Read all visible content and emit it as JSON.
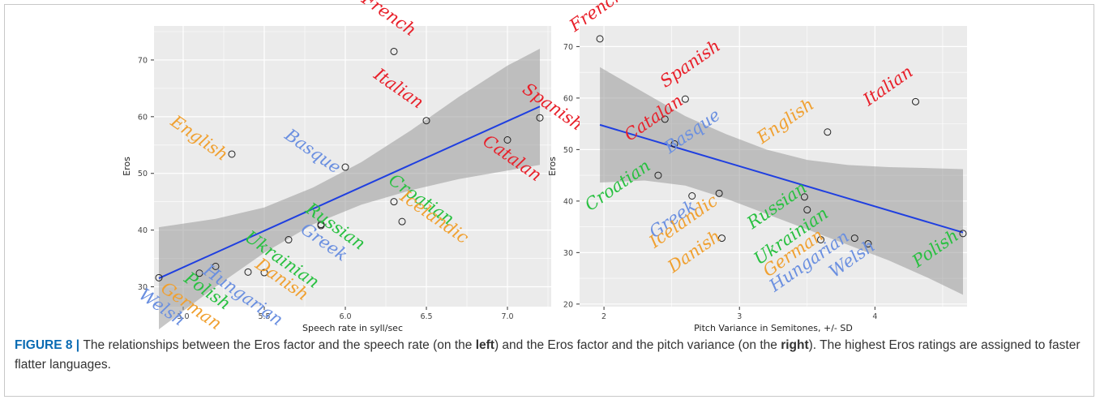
{
  "caption": {
    "label": "FIGURE 8 | ",
    "text_1": "The relationships between the Eros factor and the speech rate (on the ",
    "left_word": "left",
    "text_2": ") and the Eros factor and the pitch variance (on the ",
    "right_word": "right",
    "text_3": "). The highest Eros ratings are assigned to faster flatter languages."
  },
  "colors": {
    "panel": "#ebebeb",
    "grid": "#ffffff",
    "line": "#1f3fe0",
    "ribbon": "#999999",
    "red": "#e8202a",
    "orange": "#f0a030",
    "blue": "#6a8fe0",
    "green": "#28c040"
  },
  "chart_data": [
    {
      "type": "scatter",
      "xlabel": "Speech rate in syll/sec",
      "ylabel": "Eros",
      "xlim": [
        4.82,
        7.27
      ],
      "ylim": [
        26.5,
        76
      ],
      "x_ticks": [
        5.0,
        5.5,
        6.0,
        6.5,
        7.0
      ],
      "x_tick_labels": [
        "5.0",
        "5.5",
        "6.0",
        "6.5",
        "7.0"
      ],
      "y_ticks": [
        30,
        40,
        50,
        60,
        70
      ],
      "grid": true,
      "regression_line": {
        "x": [
          4.85,
          7.2
        ],
        "y": [
          31.5,
          61.8
        ]
      },
      "confidence_band": {
        "x": [
          4.85,
          5.2,
          5.5,
          5.8,
          6.1,
          6.4,
          6.7,
          7.0,
          7.2
        ],
        "lower": [
          22.5,
          30.0,
          36.0,
          41.0,
          44.5,
          47.0,
          49.0,
          50.5,
          51.5
        ],
        "upper": [
          40.5,
          42.0,
          44.0,
          47.5,
          52.0,
          57.5,
          63.5,
          69.0,
          72.0
        ]
      },
      "points": [
        {
          "label": "French",
          "x": 6.3,
          "y": 71.5,
          "color": "red",
          "angle": 35
        },
        {
          "label": "Italian",
          "x": 6.5,
          "y": 59.3,
          "color": "red",
          "angle": 35
        },
        {
          "label": "Spanish",
          "x": 7.2,
          "y": 59.8,
          "color": "red",
          "angle": 35
        },
        {
          "label": "Catalan",
          "x": 7.0,
          "y": 55.9,
          "color": "red",
          "angle": 35
        },
        {
          "label": "English",
          "x": 5.3,
          "y": 53.4,
          "color": "orange",
          "angle": 35
        },
        {
          "label": "Basque",
          "x": 6.0,
          "y": 51.1,
          "color": "blue",
          "angle": 35
        },
        {
          "label": "Croatian",
          "x": 6.3,
          "y": 45.0,
          "color": "green",
          "angle": 35
        },
        {
          "label": "Icelandic",
          "x": 6.35,
          "y": 41.5,
          "color": "orange",
          "angle": 35
        },
        {
          "label": "Russian",
          "x": 5.85,
          "y": 41.0,
          "color": "green",
          "angle": 35
        },
        {
          "label": "Greek",
          "x": 5.85,
          "y": 40.8,
          "color": "blue",
          "angle": 35
        },
        {
          "label": "Ukrainian",
          "x": 5.65,
          "y": 38.3,
          "color": "green",
          "angle": 35
        },
        {
          "label": "Danish",
          "x": 5.5,
          "y": 32.5,
          "color": "orange",
          "angle": 35
        },
        {
          "label": "Hungarian",
          "x": 5.4,
          "y": 32.6,
          "color": "blue",
          "angle": 35
        },
        {
          "label": "Polish",
          "x": 5.2,
          "y": 33.6,
          "color": "green",
          "angle": 35
        },
        {
          "label": "German",
          "x": 5.1,
          "y": 32.4,
          "color": "orange",
          "angle": 35
        },
        {
          "label": "Welsh",
          "x": 4.85,
          "y": 31.6,
          "color": "blue",
          "angle": 35
        }
      ]
    },
    {
      "type": "scatter",
      "xlabel": "Pitch Variance in Semitones, +/- SD",
      "ylabel": "Eros",
      "xlim": [
        1.82,
        4.68
      ],
      "ylim": [
        19.5,
        74
      ],
      "x_ticks": [
        2,
        3,
        4
      ],
      "x_tick_labels": [
        "2",
        "3",
        "4"
      ],
      "y_ticks": [
        20,
        30,
        40,
        50,
        60,
        70
      ],
      "grid": true,
      "regression_line": {
        "x": [
          1.97,
          4.65
        ],
        "y": [
          54.8,
          33.9
        ]
      },
      "confidence_band": {
        "x": [
          1.97,
          2.3,
          2.6,
          2.9,
          3.2,
          3.5,
          3.8,
          4.1,
          4.4,
          4.65
        ],
        "lower": [
          43.6,
          44.0,
          43.0,
          40.5,
          37.5,
          34.5,
          31.5,
          28.5,
          25.0,
          21.8
        ],
        "upper": [
          66.0,
          61.0,
          56.5,
          53.0,
          50.0,
          48.0,
          47.0,
          46.6,
          46.4,
          46.2
        ]
      },
      "points": [
        {
          "label": "French",
          "x": 1.97,
          "y": 71.5,
          "color": "red",
          "angle": -35
        },
        {
          "label": "Italian",
          "x": 4.3,
          "y": 59.3,
          "color": "red",
          "angle": -35
        },
        {
          "label": "Spanish",
          "x": 2.6,
          "y": 59.8,
          "color": "red",
          "angle": -35
        },
        {
          "label": "Catalan",
          "x": 2.45,
          "y": 55.9,
          "color": "red",
          "angle": -35
        },
        {
          "label": "English",
          "x": 3.65,
          "y": 53.4,
          "color": "orange",
          "angle": -35
        },
        {
          "label": "Basque",
          "x": 2.52,
          "y": 51.1,
          "color": "blue",
          "angle": -35
        },
        {
          "label": "Croatian",
          "x": 2.4,
          "y": 45.0,
          "color": "green",
          "angle": -35
        },
        {
          "label": "Greek",
          "x": 2.65,
          "y": 41.0,
          "color": "blue",
          "angle": -35
        },
        {
          "label": "Icelandic",
          "x": 2.85,
          "y": 41.5,
          "color": "orange",
          "angle": -35
        },
        {
          "label": "Danish",
          "x": 2.87,
          "y": 32.8,
          "color": "orange",
          "angle": -35
        },
        {
          "label": "Russian",
          "x": 3.48,
          "y": 40.8,
          "color": "green",
          "angle": -35
        },
        {
          "label": "Ukrainian",
          "x": 3.5,
          "y": 38.3,
          "color": "green",
          "angle": -35
        },
        {
          "label": "German",
          "x": 3.6,
          "y": 32.5,
          "color": "orange",
          "angle": -35
        },
        {
          "label": "Hungarian",
          "x": 3.85,
          "y": 32.8,
          "color": "blue",
          "angle": -35
        },
        {
          "label": "Welsh",
          "x": 3.95,
          "y": 31.7,
          "color": "blue",
          "angle": -35
        },
        {
          "label": "Polish",
          "x": 4.65,
          "y": 33.7,
          "color": "green",
          "angle": -35
        }
      ]
    }
  ]
}
